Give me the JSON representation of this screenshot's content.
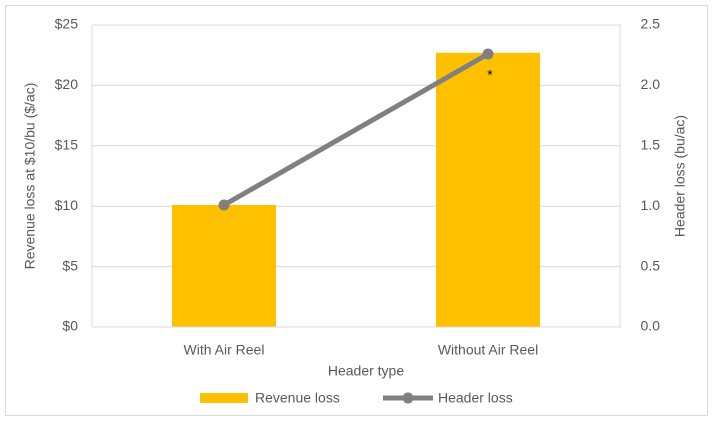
{
  "chart_data": {
    "type": "combo",
    "x_label": "Header type",
    "y_label": "Revenue loss at $10/bu ($/ac)",
    "y2_label": "Header loss (bu/ac)",
    "categories": [
      "With Air Reel",
      "Without Air Reel"
    ],
    "series": [
      {
        "name": "Revenue loss",
        "type": "bar",
        "color": "#ffc000",
        "values": [
          10.1,
          22.7
        ]
      },
      {
        "name": "Header loss",
        "type": "line",
        "axis": "y2",
        "color": "#808080",
        "values": [
          1.01,
          2.26
        ]
      }
    ],
    "ylim": [
      0,
      25
    ],
    "yticks": [
      {
        "value": 0,
        "label": "$0"
      },
      {
        "value": 5,
        "label": "$5"
      },
      {
        "value": 10,
        "label": "$10"
      },
      {
        "value": 15,
        "label": "$15"
      },
      {
        "value": 20,
        "label": "$20"
      },
      {
        "value": 25,
        "label": "$25"
      }
    ],
    "y2lim": [
      0,
      2.5
    ],
    "y2ticks": [
      {
        "value": 0,
        "label": "0.0"
      },
      0.5,
      {
        "value": 1,
        "label": "1.0"
      },
      1.5,
      {
        "value": 2,
        "label": "2.0"
      },
      2.5
    ],
    "annotation": "*",
    "grid": true,
    "legend": "bottom"
  }
}
